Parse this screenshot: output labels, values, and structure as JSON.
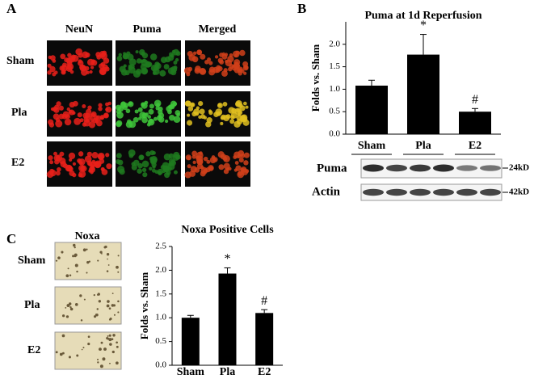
{
  "panels": [
    "A",
    "B",
    "C"
  ],
  "panel_a": {
    "columns": [
      "NeuN",
      "Puma",
      "Merged"
    ],
    "rows": [
      "Sham",
      "Pla",
      "E2"
    ]
  },
  "blot": {
    "labels": [
      "Puma",
      "Actin"
    ],
    "sizes": [
      "24kD",
      "42kD"
    ]
  },
  "panel_c": {
    "header": "Noxa",
    "rows": [
      "Sham",
      "Pla",
      "E2"
    ]
  },
  "chart_data": [
    {
      "type": "bar",
      "title": "Puma at 1d Reperfusion",
      "y_label": "Folds vs. Sham",
      "categories": [
        "Sham",
        "Pla",
        "E2"
      ],
      "values": [
        1.08,
        1.77,
        0.5
      ],
      "errors": [
        0.12,
        0.45,
        0.07
      ],
      "annotations": [
        null,
        "*",
        "#"
      ],
      "color": "#000000",
      "ylim": [
        0,
        2.5
      ],
      "yticks": [
        {
          "value": 0,
          "label": "0.0"
        },
        {
          "value": 0.5,
          "label": "0.5"
        },
        {
          "value": 1,
          "label": "1.0"
        },
        {
          "value": 1.5,
          "label": "1.5"
        },
        {
          "value": 2,
          "label": "2.0"
        }
      ]
    },
    {
      "type": "bar",
      "title": "Noxa Positive Cells",
      "y_label": "Folds vs. Sham",
      "categories": [
        "Sham",
        "Pla",
        "E2"
      ],
      "values": [
        1.0,
        1.93,
        1.1
      ],
      "errors": [
        0.05,
        0.12,
        0.07
      ],
      "annotations": [
        null,
        "*",
        "#"
      ],
      "color": "#000000",
      "ylim": [
        0,
        2.5
      ],
      "yticks": [
        {
          "value": 0,
          "label": "0.0"
        },
        {
          "value": 0.5,
          "label": "0.5"
        },
        {
          "value": 1,
          "label": "1.0"
        },
        {
          "value": 1.5,
          "label": "1.5"
        },
        {
          "value": 2,
          "label": "2.0"
        },
        {
          "value": 2.5,
          "label": "2.5"
        }
      ]
    }
  ]
}
